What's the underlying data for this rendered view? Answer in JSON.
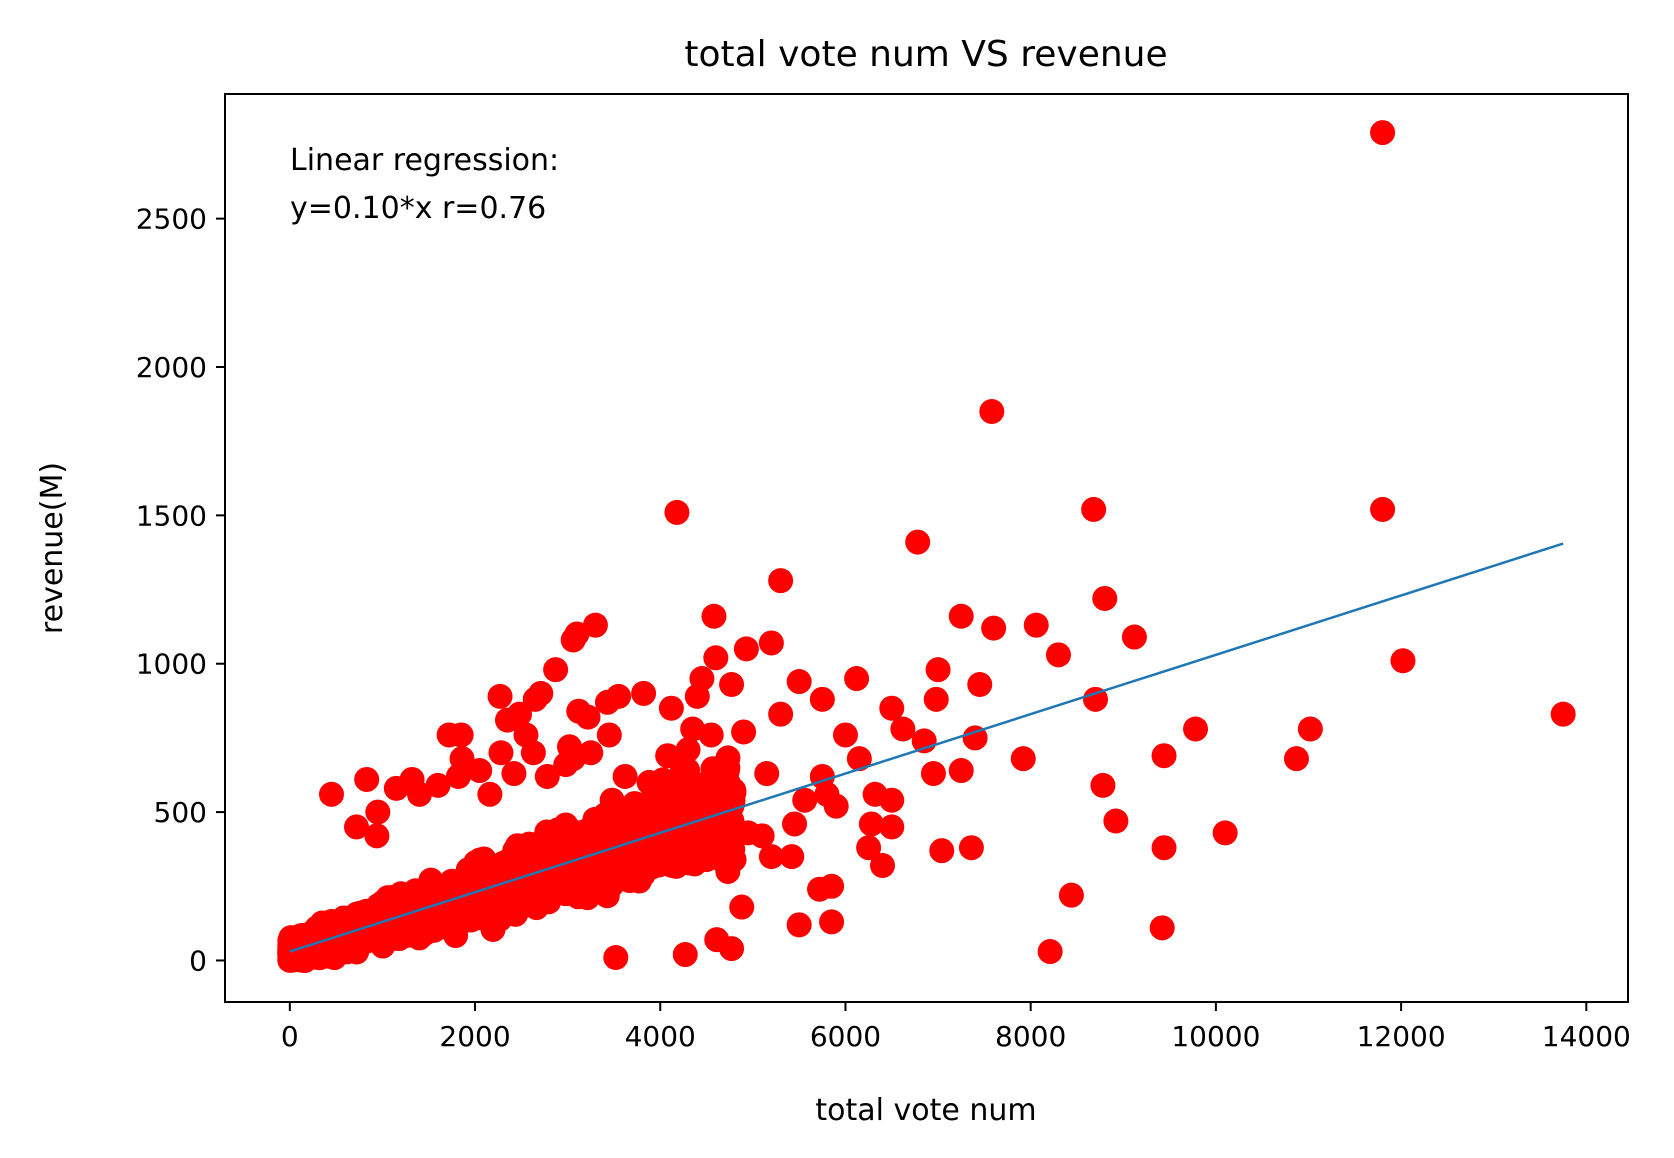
{
  "chart_data": {
    "type": "scatter",
    "title": "total vote num VS revenue",
    "xlabel": "total vote num",
    "ylabel": "revenue(M)",
    "xlim": [
      -700,
      14450
    ],
    "ylim": [
      -140,
      2920
    ],
    "xticks": [
      0,
      2000,
      4000,
      6000,
      8000,
      10000,
      12000,
      14000
    ],
    "yticks": [
      0,
      500,
      1000,
      1500,
      2000,
      2500
    ],
    "annotation": [
      "Linear regression:",
      "y=0.10*x r=0.76"
    ],
    "point_color": "#ff0000",
    "line_color": "#1f77b4",
    "regression": {
      "slope": 0.1,
      "intercept": 30,
      "x_range": [
        0,
        13750
      ]
    },
    "outliers": [
      [
        11800,
        2790
      ],
      [
        7580,
        1850
      ],
      [
        4180,
        1510
      ],
      [
        8680,
        1520
      ],
      [
        11800,
        1520
      ],
      [
        6780,
        1410
      ],
      [
        5300,
        1280
      ],
      [
        8800,
        1220
      ],
      [
        7250,
        1160
      ],
      [
        7600,
        1120
      ],
      [
        8060,
        1130
      ],
      [
        4580,
        1160
      ],
      [
        9120,
        1090
      ],
      [
        3300,
        1130
      ],
      [
        3100,
        1100
      ],
      [
        5200,
        1070
      ],
      [
        4930,
        1050
      ],
      [
        8300,
        1030
      ],
      [
        12020,
        1010
      ],
      [
        6120,
        950
      ],
      [
        7000,
        980
      ],
      [
        7450,
        930
      ],
      [
        6980,
        880
      ],
      [
        8700,
        880
      ],
      [
        5500,
        940
      ],
      [
        5750,
        880
      ],
      [
        6500,
        850
      ],
      [
        13750,
        830
      ],
      [
        6620,
        780
      ],
      [
        4900,
        770
      ],
      [
        6850,
        740
      ],
      [
        7400,
        750
      ],
      [
        7920,
        680
      ],
      [
        9440,
        690
      ],
      [
        9780,
        780
      ],
      [
        11020,
        780
      ],
      [
        10870,
        680
      ],
      [
        8780,
        590
      ],
      [
        8920,
        470
      ],
      [
        6950,
        630
      ],
      [
        7250,
        640
      ],
      [
        10100,
        430
      ],
      [
        9440,
        380
      ],
      [
        7040,
        370
      ],
      [
        7360,
        380
      ],
      [
        8440,
        220
      ],
      [
        9420,
        110
      ],
      [
        8210,
        30
      ],
      [
        6400,
        320
      ],
      [
        6500,
        450
      ],
      [
        5500,
        120
      ],
      [
        5850,
        130
      ],
      [
        5850,
        250
      ],
      [
        5720,
        240
      ],
      [
        4770,
        40
      ],
      [
        4270,
        20
      ],
      [
        3520,
        10
      ],
      [
        5150,
        630
      ],
      [
        5300,
        830
      ],
      [
        6000,
        760
      ],
      [
        6150,
        680
      ],
      [
        6320,
        560
      ],
      [
        6500,
        540
      ],
      [
        5560,
        540
      ],
      [
        5900,
        520
      ],
      [
        4450,
        950
      ],
      [
        4400,
        890
      ],
      [
        4600,
        1020
      ],
      [
        4770,
        930
      ],
      [
        4120,
        850
      ],
      [
        3820,
        900
      ],
      [
        4350,
        780
      ],
      [
        4550,
        760
      ],
      [
        4730,
        650
      ],
      [
        4300,
        710
      ],
      [
        4080,
        690
      ],
      [
        4240,
        640
      ],
      [
        3880,
        600
      ],
      [
        4950,
        430
      ],
      [
        5100,
        420
      ],
      [
        5200,
        350
      ],
      [
        5420,
        350
      ],
      [
        5450,
        460
      ],
      [
        5750,
        620
      ],
      [
        5800,
        560
      ],
      [
        6280,
        460
      ],
      [
        6250,
        380
      ],
      [
        4880,
        180
      ],
      [
        4730,
        300
      ],
      [
        4610,
        70
      ],
      [
        3060,
        1080
      ],
      [
        2870,
        980
      ],
      [
        2710,
        900
      ],
      [
        2270,
        890
      ],
      [
        2350,
        810
      ],
      [
        2550,
        760
      ],
      [
        2280,
        700
      ],
      [
        2420,
        630
      ],
      [
        1720,
        760
      ],
      [
        1850,
        760
      ],
      [
        1860,
        680
      ],
      [
        3550,
        890
      ],
      [
        3430,
        870
      ],
      [
        3450,
        760
      ],
      [
        3120,
        840
      ],
      [
        3220,
        820
      ],
      [
        3060,
        680
      ],
      [
        3250,
        700
      ],
      [
        3020,
        720
      ],
      [
        2980,
        660
      ],
      [
        2780,
        620
      ],
      [
        3620,
        620
      ],
      [
        3480,
        540
      ],
      [
        3780,
        520
      ],
      [
        3900,
        460
      ],
      [
        1320,
        610
      ],
      [
        830,
        610
      ],
      [
        450,
        560
      ],
      [
        1400,
        560
      ],
      [
        950,
        500
      ],
      [
        2650,
        880
      ],
      [
        2480,
        830
      ],
      [
        2630,
        700
      ],
      [
        2050,
        640
      ],
      [
        1600,
        590
      ],
      [
        1150,
        580
      ],
      [
        720,
        450
      ],
      [
        940,
        420
      ],
      [
        1820,
        620
      ],
      [
        2160,
        560
      ]
    ],
    "cluster": {
      "count": 1900,
      "x_max": 4800,
      "noise_sd": 85,
      "slope": 0.1,
      "intercept": 30
    }
  }
}
